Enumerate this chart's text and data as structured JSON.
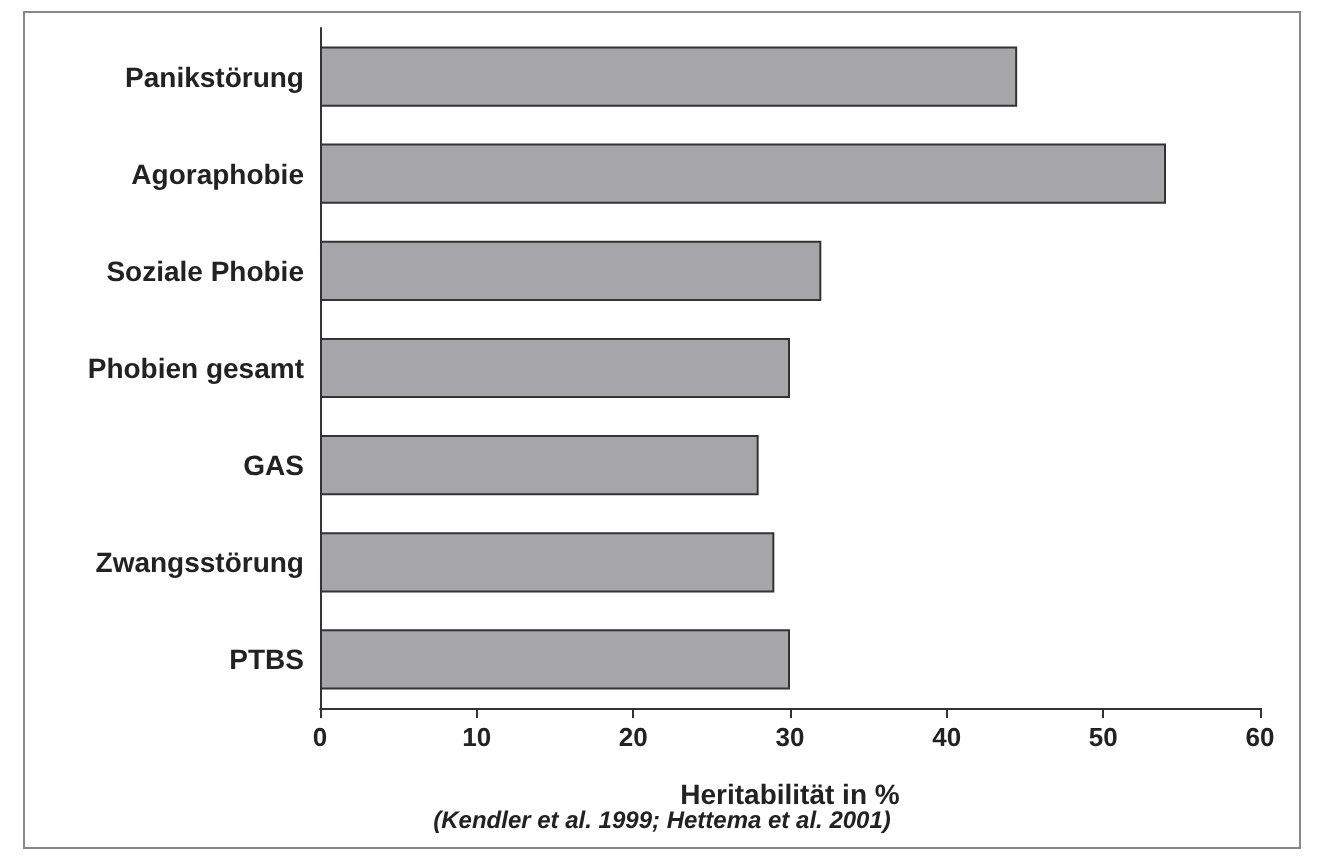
{
  "chart_data": {
    "type": "bar",
    "orientation": "horizontal",
    "xlabel": "Heritabilität in %",
    "annotations": [
      "(Kendler et al. 1999; Hettema et al. 2001)"
    ],
    "categories": [
      "Panikstörung",
      "Agoraphobie",
      "Soziale Phobie",
      "Phobien gesamt",
      "GAS",
      "Zwangsstörung",
      "PTBS"
    ],
    "values": [
      44.5,
      54,
      32,
      30,
      28,
      29,
      30
    ],
    "color": "#a6a6a8",
    "xlim": [
      0,
      60
    ],
    "xticks": [
      0,
      10,
      20,
      30,
      40,
      50,
      60
    ]
  }
}
